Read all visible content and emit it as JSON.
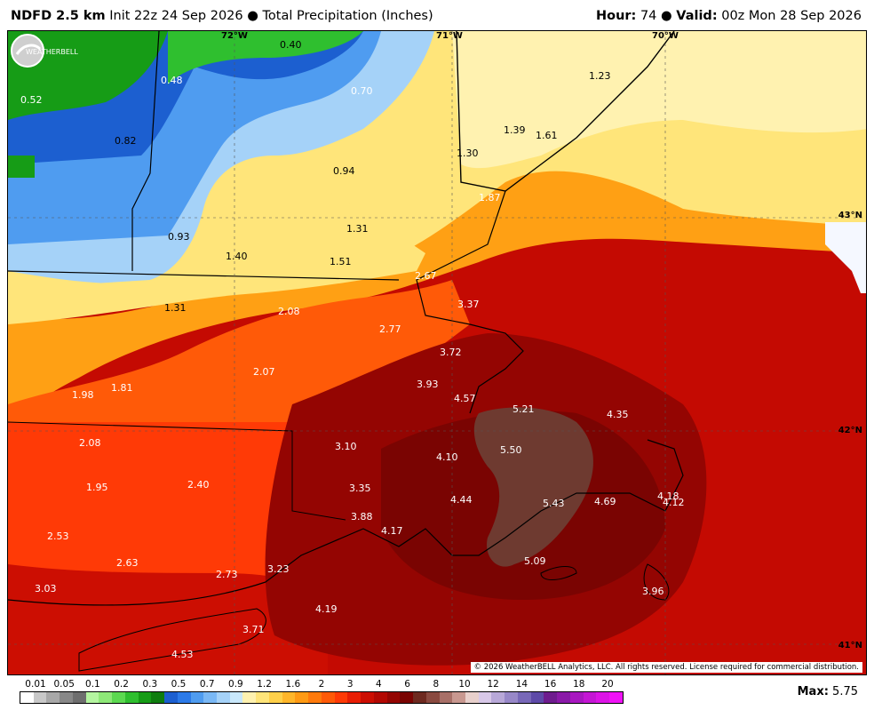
{
  "header": {
    "model": "NDFD 2.5 km",
    "init": "Init 22z 24 Sep 2026",
    "bullet": "●",
    "product": "Total Precipitation (Inches)",
    "hour_label": "Hour:",
    "hour_value": "74",
    "valid_label": "Valid:",
    "valid_value": "00z Mon 28 Sep 2026"
  },
  "map": {
    "coords": {
      "lon72": "72°W",
      "lon71": "71°W",
      "lon70": "70°W",
      "lat43": "43°N",
      "lat42": "42°N",
      "lat41": "41°N"
    },
    "copyright": "© 2026 WeatherBELL Analytics, LLC. All rights reserved. License required for commercial distribution.",
    "logo_text": "WEATHERBELL",
    "values": [
      {
        "id": "v1",
        "text": "0.40"
      },
      {
        "id": "v2",
        "text": "0.52"
      },
      {
        "id": "v3",
        "text": "0.48"
      },
      {
        "id": "v4",
        "text": "0.70"
      },
      {
        "id": "v5",
        "text": "0.82"
      },
      {
        "id": "v6",
        "text": "1.23"
      },
      {
        "id": "v7",
        "text": "1.39"
      },
      {
        "id": "v8",
        "text": "1.61"
      },
      {
        "id": "v9",
        "text": "1.30"
      },
      {
        "id": "v10",
        "text": "0.94"
      },
      {
        "id": "v11",
        "text": "1.87"
      },
      {
        "id": "v12",
        "text": "0.93"
      },
      {
        "id": "v13",
        "text": "1.31"
      },
      {
        "id": "v14",
        "text": "1.40"
      },
      {
        "id": "v15",
        "text": "1.51"
      },
      {
        "id": "v16",
        "text": "2.67"
      },
      {
        "id": "v17",
        "text": "1.31"
      },
      {
        "id": "v18",
        "text": "2.08"
      },
      {
        "id": "v19",
        "text": "3.37"
      },
      {
        "id": "v20",
        "text": "2.77"
      },
      {
        "id": "v21",
        "text": "3.72"
      },
      {
        "id": "v22",
        "text": "2.07"
      },
      {
        "id": "v23",
        "text": "3.93"
      },
      {
        "id": "v24",
        "text": "1.81"
      },
      {
        "id": "v25",
        "text": "1.98"
      },
      {
        "id": "v26",
        "text": "4.57"
      },
      {
        "id": "v27",
        "text": "5.21"
      },
      {
        "id": "v28",
        "text": "4.35"
      },
      {
        "id": "v29",
        "text": "2.08"
      },
      {
        "id": "v30",
        "text": "3.10"
      },
      {
        "id": "v31",
        "text": "5.50"
      },
      {
        "id": "v32",
        "text": "4.10"
      },
      {
        "id": "v33",
        "text": "1.95"
      },
      {
        "id": "v34",
        "text": "2.40"
      },
      {
        "id": "v35",
        "text": "3.35"
      },
      {
        "id": "v36",
        "text": "4.44"
      },
      {
        "id": "v37",
        "text": "5.43"
      },
      {
        "id": "v38",
        "text": "4.69"
      },
      {
        "id": "v39",
        "text": "4.18"
      },
      {
        "id": "v40",
        "text": "4.12"
      },
      {
        "id": "v41",
        "text": "3.88"
      },
      {
        "id": "v42",
        "text": "2.53"
      },
      {
        "id": "v43",
        "text": "4.17"
      },
      {
        "id": "v44",
        "text": "2.63"
      },
      {
        "id": "v45",
        "text": "5.09"
      },
      {
        "id": "v46",
        "text": "3.23"
      },
      {
        "id": "v47",
        "text": "2.73"
      },
      {
        "id": "v48",
        "text": "3.03"
      },
      {
        "id": "v49",
        "text": "3.96"
      },
      {
        "id": "v50",
        "text": "4.19"
      },
      {
        "id": "v51",
        "text": "3.71"
      },
      {
        "id": "v52",
        "text": "4.53"
      }
    ]
  },
  "legend": {
    "ticks": [
      "0.01",
      "0.05",
      "0.1",
      "0.2",
      "0.3",
      "0.5",
      "0.7",
      "0.9",
      "1.2",
      "1.6",
      "2",
      "3",
      "4",
      "6",
      "8",
      "10",
      "12",
      "14",
      "16",
      "18",
      "20"
    ],
    "colors": [
      "#ffffff",
      "#c8c8c8",
      "#a8a8a8",
      "#888888",
      "#6e6e6e",
      "#b4f5a0",
      "#8ee878",
      "#5cd950",
      "#2fbf2f",
      "#169c16",
      "#0f7d0f",
      "#1c5fd0",
      "#2c7ae8",
      "#4f9cf0",
      "#7ab8f5",
      "#a5d2f8",
      "#c9e8fb",
      "#fff2b0",
      "#ffe57a",
      "#ffd04a",
      "#ffb62a",
      "#ff9a14",
      "#ff7a0c",
      "#ff5a08",
      "#ff3a06",
      "#e81e04",
      "#cc0e02",
      "#b20802",
      "#940502",
      "#7a0402",
      "#6e2a20",
      "#8a4a40",
      "#a87068",
      "#c89890",
      "#e8d0cc",
      "#d8c8e8",
      "#b8a8d8",
      "#9888c8",
      "#7868b8",
      "#5e4aa8",
      "#6e1c8e",
      "#8a1aa8",
      "#a818c0",
      "#c416d4",
      "#dc14e6",
      "#f012f6"
    ],
    "max_label": "Max:",
    "max_value": "5.75"
  }
}
